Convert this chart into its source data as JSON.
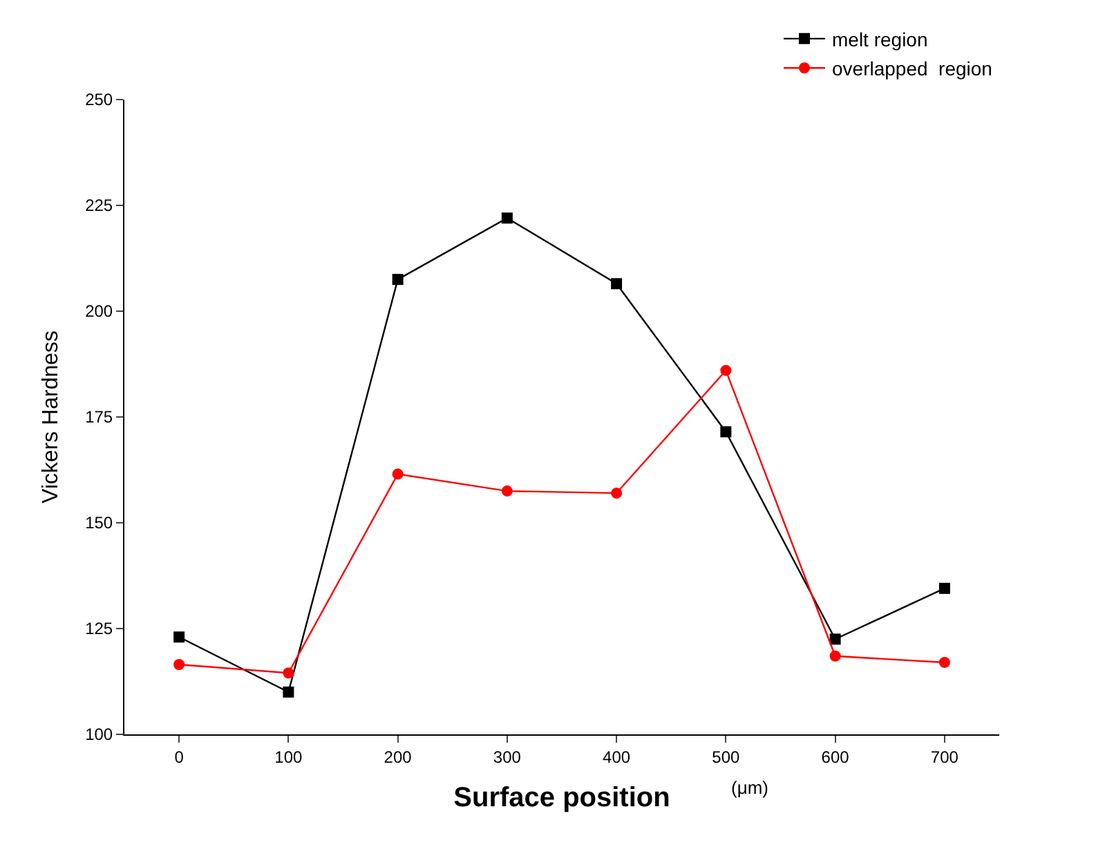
{
  "chart_data": {
    "type": "line",
    "xlabel": "Surface position",
    "ylabel": "Vickers Hardness",
    "annotations": [
      "(μm)"
    ],
    "x": [
      0,
      100,
      200,
      300,
      400,
      500,
      600,
      700
    ],
    "series": [
      {
        "name": "melt region",
        "color": "#000000",
        "marker": "square",
        "values": [
          123,
          110,
          207.5,
          222,
          206.5,
          171.5,
          122.5,
          134.5
        ]
      },
      {
        "name": "overlapped  region",
        "color": "#ff0000",
        "marker": "circle",
        "values": [
          116.5,
          114.5,
          161.5,
          157.5,
          157,
          186,
          118.5,
          117
        ]
      }
    ],
    "xlim": [
      -50,
      750
    ],
    "xticks": [
      0,
      100,
      200,
      300,
      400,
      500,
      600,
      700
    ],
    "ylim": [
      100,
      250
    ],
    "yticks": [
      100,
      125,
      150,
      175,
      200,
      225,
      250
    ],
    "legend": "top right",
    "line_style": "solid"
  }
}
